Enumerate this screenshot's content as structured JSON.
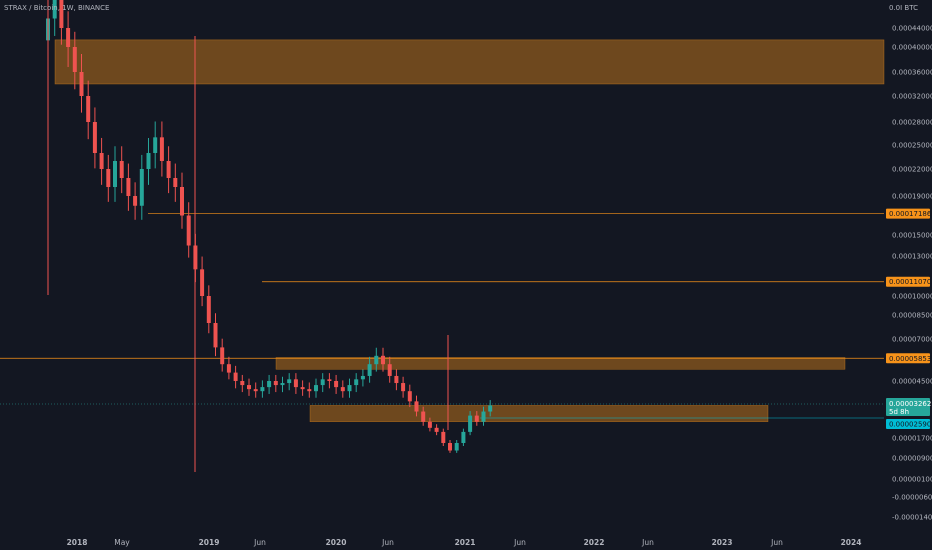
{
  "header": {
    "title": "STRAX / Bitcoin, 1W, BINANCE"
  },
  "chart_data": {
    "type": "candlestick",
    "title": "STRAX / Bitcoin, 1W, BINANCE",
    "currency_label": "BTC",
    "y_ticks": [
      {
        "label": "0.00044000",
        "v": 0.00044
      },
      {
        "label": "0.00040000",
        "v": 0.0004
      },
      {
        "label": "0.00036000",
        "v": 0.00036
      },
      {
        "label": "0.00032000",
        "v": 0.00032
      },
      {
        "label": "0.00028000",
        "v": 0.00028
      },
      {
        "label": "0.00025000",
        "v": 0.00025
      },
      {
        "label": "0.00022000",
        "v": 0.00022
      },
      {
        "label": "0.00019000",
        "v": 0.00019
      },
      {
        "label": "0.00015000",
        "v": 0.00015
      },
      {
        "label": "0.00013000",
        "v": 0.00013
      },
      {
        "label": "0.00010000",
        "v": 0.0001
      },
      {
        "label": "0.00008500",
        "v": 8.5e-05
      },
      {
        "label": "0.00007000",
        "v": 7e-05
      },
      {
        "label": "0.00004500",
        "v": 4.5e-05
      },
      {
        "label": "0.00001700",
        "v": 1.7e-05
      },
      {
        "label": "0.00000900",
        "v": 9e-06
      },
      {
        "label": "0.00000100",
        "v": 1e-06
      },
      {
        "label": "-0.00000600",
        "v": -6e-06
      },
      {
        "label": "-0.00001400",
        "v": -1.4e-05
      }
    ],
    "x_ticks": [
      {
        "label": "2018",
        "bold": true
      },
      {
        "label": "May",
        "bold": false
      },
      {
        "label": "2019",
        "bold": true
      },
      {
        "label": "Jun",
        "bold": false
      },
      {
        "label": "2020",
        "bold": true
      },
      {
        "label": "Jun",
        "bold": false
      },
      {
        "label": "2021",
        "bold": true
      },
      {
        "label": "Jun",
        "bold": false
      },
      {
        "label": "2022",
        "bold": true
      },
      {
        "label": "Jun",
        "bold": false
      },
      {
        "label": "2023",
        "bold": true
      },
      {
        "label": "Jun",
        "bold": false
      },
      {
        "label": "2024",
        "bold": true
      }
    ],
    "levels": [
      {
        "label": "0.00017186",
        "v": 0.00017186,
        "color": "#f7931a",
        "text_color": "#131722"
      },
      {
        "label": "0.00011070",
        "v": 0.0001107,
        "color": "#f7931a",
        "text_color": "#131722"
      },
      {
        "label": "0.00005853",
        "v": 5.853e-05,
        "color": "#f7931a",
        "text_color": "#131722"
      }
    ],
    "current_price": {
      "label": "0.00003262",
      "countdown": "5d 8h",
      "color": "#26a69a"
    },
    "low_marker": {
      "label": "0.00002590",
      "color": "#00bcd4"
    },
    "zones": [
      {
        "from": 0.00034,
        "to": 0.000415,
        "color": "#f7931a"
      },
      {
        "from": 5.2e-05,
        "to": 5.9e-05,
        "color": "#f7931a"
      },
      {
        "from": 2.5e-05,
        "to": 3.3e-05,
        "color": "#f7931a"
      }
    ],
    "colors": {
      "up": "#26a69a",
      "down": "#ef5350",
      "background": "#131722",
      "text": "#b2b5be"
    },
    "series_close": [
      0.00046,
      0.00052,
      0.00044,
      0.0004,
      0.00036,
      0.00032,
      0.00028,
      0.00024,
      0.00022,
      0.0002,
      0.00023,
      0.00021,
      0.00019,
      0.00018,
      0.00022,
      0.00024,
      0.00026,
      0.00023,
      0.00021,
      0.0002,
      0.00017,
      0.00014,
      0.00012,
      0.0001,
      8e-05,
      6.5e-05,
      5.5e-05,
      5e-05,
      4.5e-05,
      4.3e-05,
      4.1e-05,
      4e-05,
      4.2e-05,
      4.5e-05,
      4.3e-05,
      4.4e-05,
      4.6e-05,
      4.2e-05,
      4.1e-05,
      4e-05,
      4.3e-05,
      4.6e-05,
      4.5e-05,
      4.2e-05,
      4e-05,
      4.3e-05,
      4.6e-05,
      4.8e-05,
      5.5e-05,
      6e-05,
      5.5e-05,
      4.8e-05,
      4.4e-05,
      4e-05,
      3.5e-05,
      3e-05,
      2.5e-05,
      2.2e-05,
      2e-05,
      1.5e-05,
      1.2e-05,
      1.5e-05,
      2e-05,
      2.8e-05,
      2.5e-05,
      3e-05,
      3.3e-05
    ]
  }
}
